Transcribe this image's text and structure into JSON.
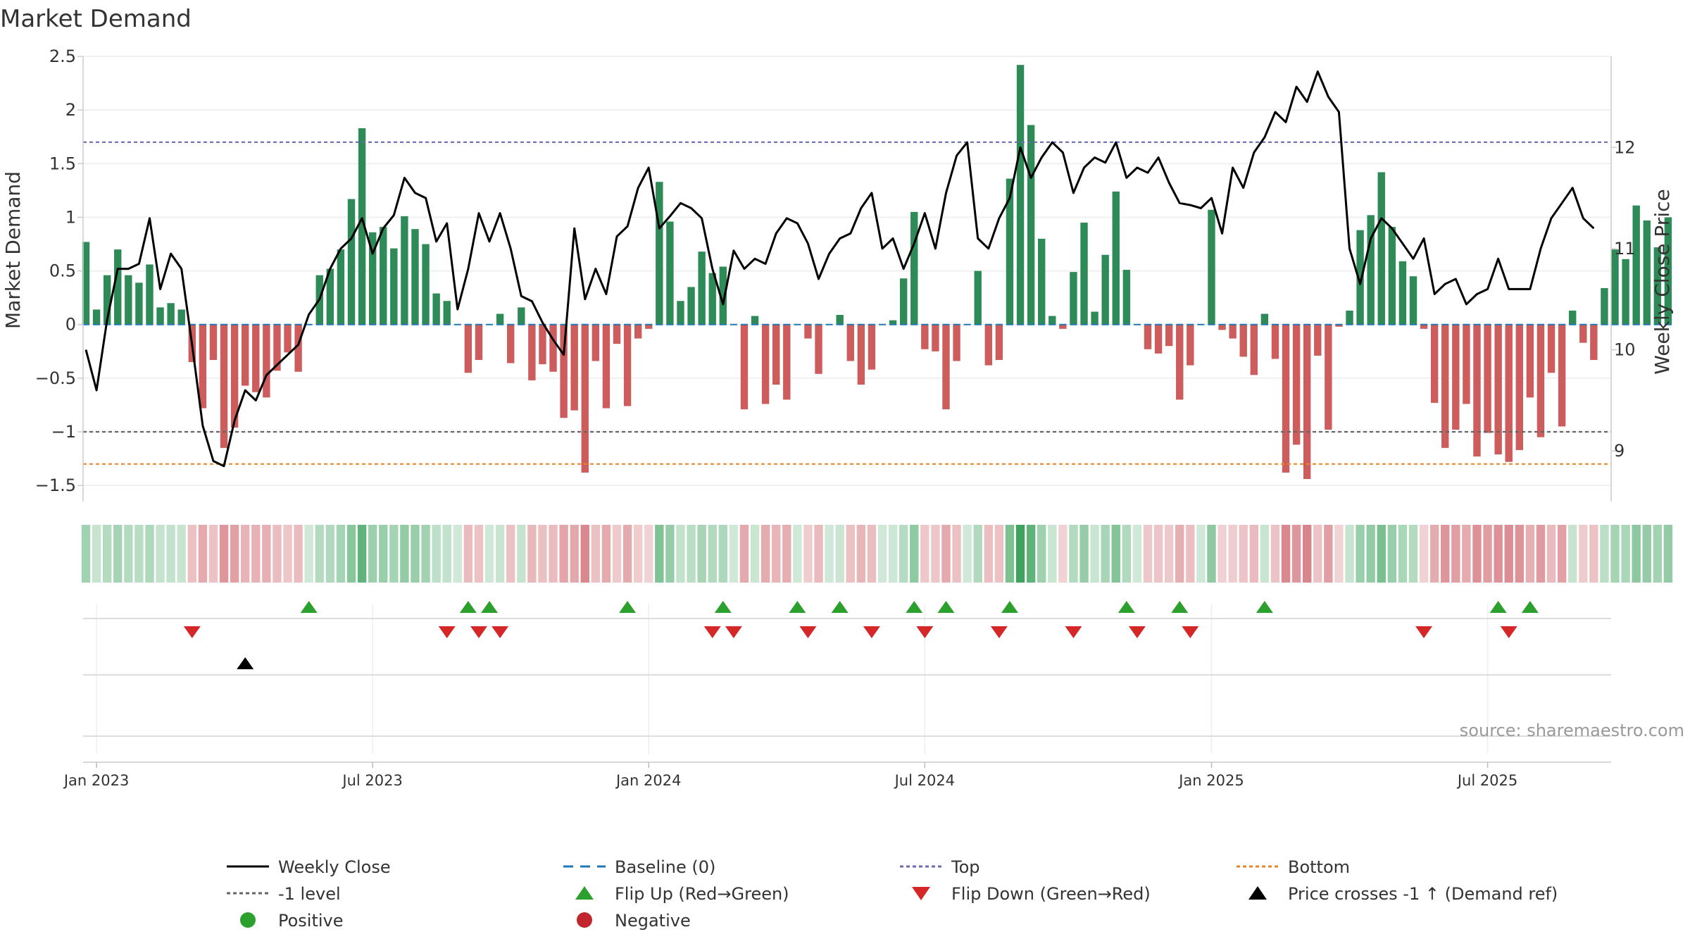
{
  "chart_data": {
    "type": "bar",
    "title": "Market Demand",
    "ylabel": "Market Demand",
    "y2label": "Weekly Close Price",
    "ylim": [
      -1.65,
      2.5
    ],
    "y2lim": [
      8.5,
      12.9
    ],
    "yticks": [
      "2.5",
      "2",
      "1.5",
      "1",
      "0.5",
      "0",
      "−0.5",
      "−1",
      "−1.5"
    ],
    "ytick_values": [
      2.5,
      2,
      1.5,
      1,
      0.5,
      0,
      -0.5,
      -1,
      -1.5
    ],
    "y2ticks": [
      "12",
      "11",
      "10",
      "9"
    ],
    "y2tick_values": [
      12,
      11,
      10,
      9
    ],
    "x_labels": [
      "Jan 2023",
      "Jul 2023",
      "Jan 2024",
      "Jul 2024",
      "Jan 2025",
      "Jul 2025"
    ],
    "x_label_weeks": [
      1,
      27,
      53,
      79,
      106,
      132
    ],
    "week_count": 145,
    "reference_lines": [
      {
        "name": "Top",
        "value": 1.7,
        "color": "#6b6bb5"
      },
      {
        "name": "-1 level",
        "value": -1.0,
        "color": "#666666"
      },
      {
        "name": "Bottom",
        "value": -1.3,
        "color": "#e8872a"
      }
    ],
    "series": [
      {
        "name": "Market Demand",
        "values": [
          0.77,
          0.14,
          0.46,
          0.7,
          0.46,
          0.39,
          0.56,
          0.16,
          0.2,
          0.14,
          -0.35,
          -0.78,
          -0.33,
          -1.15,
          -0.96,
          -0.57,
          -0.63,
          -0.68,
          -0.43,
          -0.26,
          -0.44,
          0.0,
          0.46,
          0.52,
          0.7,
          1.17,
          1.83,
          0.86,
          0.91,
          0.71,
          1.01,
          0.89,
          0.75,
          0.29,
          0.22,
          0.0,
          -0.45,
          -0.33,
          0.0,
          0.1,
          -0.36,
          0.16,
          -0.52,
          -0.37,
          -0.44,
          -0.87,
          -0.8,
          -1.38,
          -0.34,
          -0.78,
          -0.18,
          -0.76,
          -0.13,
          -0.04,
          1.33,
          0.96,
          0.22,
          0.35,
          0.68,
          0.48,
          0.54,
          0.0,
          -0.79,
          0.08,
          -0.74,
          -0.56,
          -0.7,
          0.0,
          -0.13,
          -0.46,
          0.0,
          0.09,
          -0.34,
          -0.56,
          -0.42,
          0.0,
          0.04,
          0.43,
          1.05,
          -0.23,
          -0.25,
          -0.79,
          -0.34,
          0.0,
          0.5,
          -0.38,
          -0.33,
          1.36,
          2.42,
          1.86,
          0.8,
          0.08,
          -0.04,
          0.49,
          0.95,
          0.12,
          0.65,
          1.24,
          0.51,
          0.0,
          -0.23,
          -0.27,
          -0.2,
          -0.7,
          -0.38,
          0.0,
          1.07,
          -0.05,
          -0.13,
          -0.3,
          -0.47,
          0.1,
          -0.32,
          -1.38,
          -1.12,
          -1.44,
          -0.29,
          -0.98,
          -0.02,
          0.13,
          0.88,
          1.02,
          1.42,
          0.91,
          0.59,
          0.45,
          -0.04,
          -0.73,
          -1.15,
          -0.98,
          -0.74,
          -1.23,
          -1.01,
          -1.21,
          -1.28,
          -1.17,
          -0.68,
          -1.05,
          -0.45,
          -0.95,
          0.13,
          -0.17,
          -0.33,
          0.34,
          0.7,
          0.61,
          1.11,
          0.97,
          0.72,
          1.0
        ]
      },
      {
        "name": "Weekly Close",
        "values": [
          10.0,
          9.6,
          10.3,
          10.8,
          10.8,
          10.85,
          11.3,
          10.6,
          10.95,
          10.8,
          10.05,
          9.25,
          8.9,
          8.85,
          9.3,
          9.6,
          9.5,
          9.75,
          9.85,
          9.95,
          10.05,
          10.35,
          10.5,
          10.8,
          11.0,
          11.1,
          11.3,
          10.95,
          11.2,
          11.33,
          11.7,
          11.55,
          11.5,
          11.07,
          11.25,
          10.4,
          10.8,
          11.35,
          11.07,
          11.35,
          11.0,
          10.53,
          10.48,
          10.27,
          10.1,
          9.95,
          11.2,
          10.5,
          10.8,
          10.55,
          11.12,
          11.22,
          11.6,
          11.8,
          11.2,
          11.32,
          11.45,
          11.4,
          11.3,
          10.8,
          10.45,
          10.98,
          10.8,
          10.9,
          10.85,
          11.15,
          11.3,
          11.25,
          11.05,
          10.7,
          10.95,
          11.1,
          11.15,
          11.4,
          11.55,
          11.0,
          11.1,
          10.8,
          11.05,
          11.35,
          11.0,
          11.55,
          11.92,
          12.05,
          11.1,
          11.0,
          11.3,
          11.5,
          12.0,
          11.7,
          11.9,
          12.05,
          11.95,
          11.55,
          11.8,
          11.9,
          11.85,
          12.05,
          11.7,
          11.8,
          11.75,
          11.9,
          11.65,
          11.45,
          11.43,
          11.4,
          11.5,
          11.15,
          11.8,
          11.6,
          11.95,
          12.1,
          12.35,
          12.25,
          12.6,
          12.45,
          12.75,
          12.5,
          12.35,
          11.0,
          10.65,
          11.1,
          11.3,
          11.2,
          11.05,
          10.9,
          11.1,
          10.55,
          10.65,
          10.7,
          10.45,
          10.55,
          10.6,
          10.9,
          10.6,
          10.6,
          10.6,
          11.0,
          11.3,
          11.45,
          11.6,
          11.3,
          11.2
        ],
        "note": "weekly close price, right axis; drawn over the first 145 weeks with weeks 18-21 on the bear leg"
      }
    ],
    "flip_up_weeks": [
      21,
      36,
      38,
      51,
      60,
      67,
      71,
      78,
      81,
      87,
      98,
      103,
      111,
      133,
      136
    ],
    "flip_down_weeks": [
      10,
      34,
      37,
      39,
      59,
      61,
      68,
      74,
      79,
      86,
      93,
      99,
      104,
      126,
      134
    ],
    "price_cross_weeks": [
      15
    ],
    "source": "source: sharemaestro.com",
    "legend": [
      {
        "label": "Weekly Close",
        "kind": "line",
        "color": "#000000"
      },
      {
        "label": "Baseline (0)",
        "kind": "dash",
        "color": "#1f77b4"
      },
      {
        "label": "Top",
        "kind": "dot",
        "color": "#6b6bb5"
      },
      {
        "label": "Bottom",
        "kind": "dot",
        "color": "#e8872a"
      },
      {
        "label": "-1 level",
        "kind": "dot",
        "color": "#666666"
      },
      {
        "label": "Flip Up (Red→Green)",
        "kind": "tri-up",
        "color": "#2ca02c"
      },
      {
        "label": "Flip Down (Green→Red)",
        "kind": "tri-down",
        "color": "#d62728"
      },
      {
        "label": "Price crosses -1 ↑ (Demand ref)",
        "kind": "tri-up",
        "color": "#000000"
      },
      {
        "label": "Positive",
        "kind": "circle",
        "color": "#2ca02c"
      },
      {
        "label": "Negative",
        "kind": "circle",
        "color": "#c0262b"
      }
    ],
    "colors": {
      "positive": "#2e8b57",
      "negative": "#cd5c5c",
      "heat_pos": "#3fa35f",
      "heat_neg": "#c8525a"
    }
  }
}
